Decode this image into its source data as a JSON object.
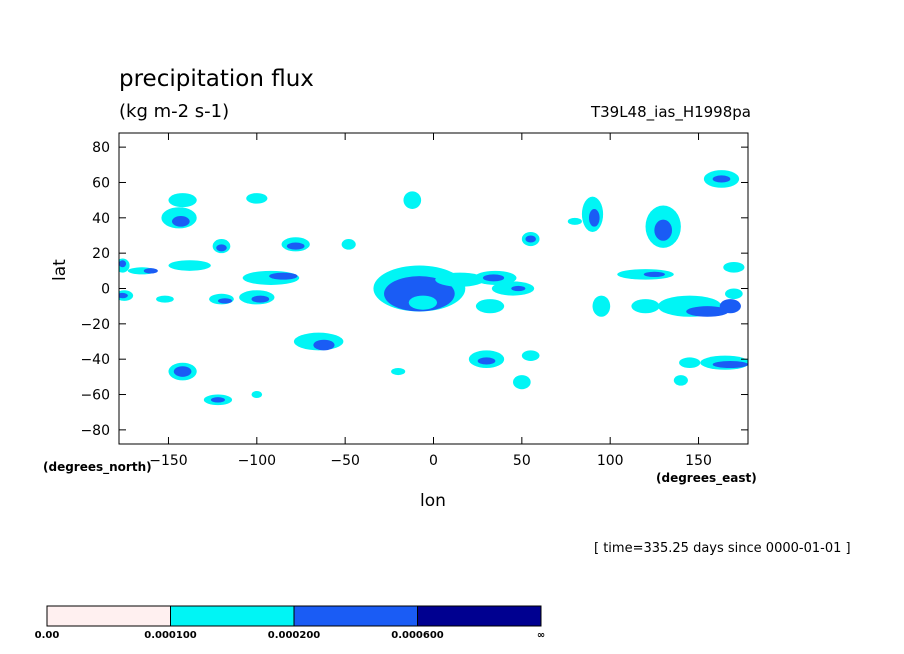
{
  "chart_data": {
    "type": "heatmap",
    "title": "precipitation flux",
    "units": "(kg m-2 s-1)",
    "experiment": "T39L48_ias_H1998pa",
    "xlabel": "lon",
    "xlabel_units": "(degrees_east)",
    "ylabel": "lat",
    "ylabel_units": "(degrees_north)",
    "xlim": [
      -178,
      178
    ],
    "ylim": [
      -88,
      88
    ],
    "x_ticks": [
      -150,
      -100,
      -50,
      0,
      50,
      100,
      150
    ],
    "x_tick_labels": [
      "−150",
      "−100",
      "−50",
      "0",
      "50",
      "100",
      "150"
    ],
    "y_ticks": [
      80,
      60,
      40,
      20,
      0,
      -20,
      -40,
      -60,
      -80
    ],
    "y_tick_labels": [
      "80",
      "60",
      "40",
      "20",
      "0",
      "−20",
      "−40",
      "−60",
      "−80"
    ],
    "time_note": "[ time=335.25 days since 0000-01-01 ]",
    "levels": [
      {
        "label": "0.00",
        "color": "#fff0f0"
      },
      {
        "label": "0.000100",
        "color": "#00f5f5"
      },
      {
        "label": "0.000200",
        "color": "#1a5cf5"
      },
      {
        "label": "0.000600",
        "color": "#000090"
      },
      {
        "label": "∞"
      }
    ],
    "regions": [
      {
        "lon": -142,
        "lat": 50,
        "rx": 8,
        "ry": 4,
        "level": 1
      },
      {
        "lon": -144,
        "lat": 40,
        "rx": 10,
        "ry": 6,
        "level": 1
      },
      {
        "lon": -143,
        "lat": 38,
        "rx": 5,
        "ry": 3,
        "level": 2
      },
      {
        "lon": -100,
        "lat": 51,
        "rx": 6,
        "ry": 3,
        "level": 1
      },
      {
        "lon": -120,
        "lat": 24,
        "rx": 5,
        "ry": 4,
        "level": 1
      },
      {
        "lon": -120,
        "lat": 23,
        "rx": 3,
        "ry": 2,
        "level": 2
      },
      {
        "lon": -78,
        "lat": 25,
        "rx": 8,
        "ry": 4,
        "level": 1
      },
      {
        "lon": -78,
        "lat": 24,
        "rx": 5,
        "ry": 2,
        "level": 2
      },
      {
        "lon": -48,
        "lat": 25,
        "rx": 4,
        "ry": 3,
        "level": 1
      },
      {
        "lon": -12,
        "lat": 50,
        "rx": 5,
        "ry": 5,
        "level": 1
      },
      {
        "lon": -165,
        "lat": 10,
        "rx": 8,
        "ry": 2,
        "level": 1
      },
      {
        "lon": -160,
        "lat": 10,
        "rx": 4,
        "ry": 1.5,
        "level": 2
      },
      {
        "lon": -176,
        "lat": 13,
        "rx": 4,
        "ry": 4,
        "level": 1
      },
      {
        "lon": -176,
        "lat": 14,
        "rx": 2,
        "ry": 2,
        "level": 2
      },
      {
        "lon": -138,
        "lat": 13,
        "rx": 12,
        "ry": 3,
        "level": 1
      },
      {
        "lon": -92,
        "lat": 6,
        "rx": 16,
        "ry": 4,
        "level": 1
      },
      {
        "lon": -85,
        "lat": 7,
        "rx": 8,
        "ry": 2,
        "level": 2
      },
      {
        "lon": -100,
        "lat": -5,
        "rx": 10,
        "ry": 4,
        "level": 1
      },
      {
        "lon": -98,
        "lat": -6,
        "rx": 5,
        "ry": 2,
        "level": 2
      },
      {
        "lon": -120,
        "lat": -6,
        "rx": 7,
        "ry": 3,
        "level": 1
      },
      {
        "lon": -118,
        "lat": -7,
        "rx": 4,
        "ry": 1.5,
        "level": 2
      },
      {
        "lon": -175,
        "lat": -4,
        "rx": 5,
        "ry": 3,
        "level": 1
      },
      {
        "lon": -176,
        "lat": -4,
        "rx": 3,
        "ry": 1.5,
        "level": 2
      },
      {
        "lon": -152,
        "lat": -6,
        "rx": 5,
        "ry": 2,
        "level": 1
      },
      {
        "lon": -65,
        "lat": -30,
        "rx": 14,
        "ry": 5,
        "level": 1
      },
      {
        "lon": -62,
        "lat": -32,
        "rx": 6,
        "ry": 3,
        "level": 2
      },
      {
        "lon": -142,
        "lat": -47,
        "rx": 8,
        "ry": 5,
        "level": 1
      },
      {
        "lon": -142,
        "lat": -47,
        "rx": 5,
        "ry": 3,
        "level": 2
      },
      {
        "lon": -122,
        "lat": -63,
        "rx": 8,
        "ry": 3,
        "level": 1
      },
      {
        "lon": -122,
        "lat": -63,
        "rx": 4,
        "ry": 1.5,
        "level": 2
      },
      {
        "lon": -100,
        "lat": -60,
        "rx": 3,
        "ry": 2,
        "level": 1
      },
      {
        "lon": -20,
        "lat": -47,
        "rx": 4,
        "ry": 2,
        "level": 1
      },
      {
        "lon": -8,
        "lat": 0,
        "rx": 26,
        "ry": 13,
        "level": 1
      },
      {
        "lon": -8,
        "lat": -3,
        "rx": 20,
        "ry": 10,
        "level": 2
      },
      {
        "lon": -6,
        "lat": -8,
        "rx": 8,
        "ry": 4,
        "level": 1
      },
      {
        "lon": 15,
        "lat": 5,
        "rx": 14,
        "ry": 4,
        "level": 1
      },
      {
        "lon": 35,
        "lat": 6,
        "rx": 12,
        "ry": 4,
        "level": 1
      },
      {
        "lon": 34,
        "lat": 6,
        "rx": 6,
        "ry": 2,
        "level": 2
      },
      {
        "lon": 45,
        "lat": 0,
        "rx": 12,
        "ry": 4,
        "level": 1
      },
      {
        "lon": 48,
        "lat": 0,
        "rx": 4,
        "ry": 1.5,
        "level": 2
      },
      {
        "lon": 32,
        "lat": -10,
        "rx": 8,
        "ry": 4,
        "level": 1
      },
      {
        "lon": 55,
        "lat": 28,
        "rx": 5,
        "ry": 4,
        "level": 1
      },
      {
        "lon": 55,
        "lat": 28,
        "rx": 3,
        "ry": 2,
        "level": 2
      },
      {
        "lon": 90,
        "lat": 42,
        "rx": 6,
        "ry": 10,
        "level": 1
      },
      {
        "lon": 91,
        "lat": 40,
        "rx": 3,
        "ry": 5,
        "level": 2
      },
      {
        "lon": 130,
        "lat": 35,
        "rx": 10,
        "ry": 12,
        "level": 1
      },
      {
        "lon": 130,
        "lat": 33,
        "rx": 5,
        "ry": 6,
        "level": 2
      },
      {
        "lon": 163,
        "lat": 62,
        "rx": 10,
        "ry": 5,
        "level": 1
      },
      {
        "lon": 163,
        "lat": 62,
        "rx": 5,
        "ry": 2,
        "level": 2
      },
      {
        "lon": 120,
        "lat": 8,
        "rx": 16,
        "ry": 3,
        "level": 1
      },
      {
        "lon": 125,
        "lat": 8,
        "rx": 6,
        "ry": 1.5,
        "level": 2
      },
      {
        "lon": 145,
        "lat": -10,
        "rx": 18,
        "ry": 6,
        "level": 1
      },
      {
        "lon": 155,
        "lat": -13,
        "rx": 12,
        "ry": 3,
        "level": 2
      },
      {
        "lon": 168,
        "lat": -10,
        "rx": 6,
        "ry": 4,
        "level": 2
      },
      {
        "lon": 170,
        "lat": -3,
        "rx": 5,
        "ry": 3,
        "level": 1
      },
      {
        "lon": 95,
        "lat": -10,
        "rx": 5,
        "ry": 6,
        "level": 1
      },
      {
        "lon": 120,
        "lat": -10,
        "rx": 8,
        "ry": 4,
        "level": 1
      },
      {
        "lon": 50,
        "lat": -53,
        "rx": 5,
        "ry": 4,
        "level": 1
      },
      {
        "lon": 30,
        "lat": -40,
        "rx": 10,
        "ry": 5,
        "level": 1
      },
      {
        "lon": 30,
        "lat": -41,
        "rx": 5,
        "ry": 2,
        "level": 2
      },
      {
        "lon": 165,
        "lat": -42,
        "rx": 14,
        "ry": 4,
        "level": 1
      },
      {
        "lon": 168,
        "lat": -43,
        "rx": 10,
        "ry": 2,
        "level": 2
      },
      {
        "lon": 145,
        "lat": -42,
        "rx": 6,
        "ry": 3,
        "level": 1
      },
      {
        "lon": 140,
        "lat": -52,
        "rx": 4,
        "ry": 3,
        "level": 1
      },
      {
        "lon": 55,
        "lat": -38,
        "rx": 5,
        "ry": 3,
        "level": 1
      },
      {
        "lon": 80,
        "lat": 38,
        "rx": 4,
        "ry": 2,
        "level": 1
      },
      {
        "lon": 170,
        "lat": 12,
        "rx": 6,
        "ry": 3,
        "level": 1
      }
    ]
  }
}
